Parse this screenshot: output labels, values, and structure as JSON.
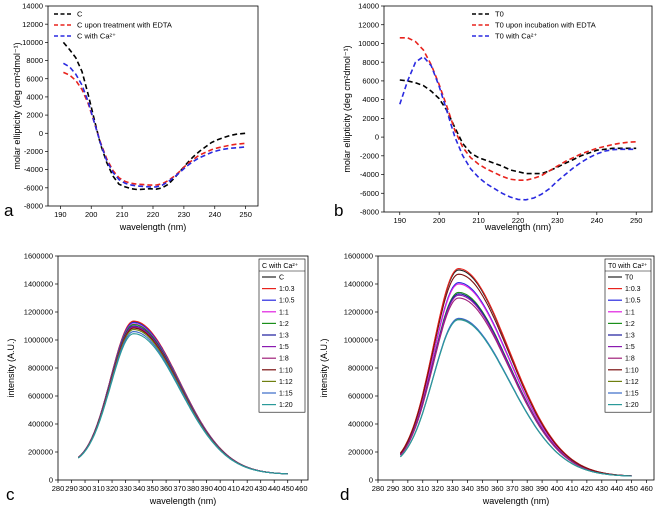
{
  "colors": {
    "black": "#000000",
    "red": "#e8231d",
    "blue": "#2a2ae0"
  },
  "chart_data": [
    {
      "id": "a",
      "type": "line",
      "panel_label": "a",
      "xlabel": "wavelength (nm)",
      "ylabel": "molar ellipticity (deg cm²dmol⁻¹)",
      "xlim": [
        186,
        254
      ],
      "ylim": [
        -8000,
        14000
      ],
      "xticks": [
        190,
        200,
        210,
        220,
        230,
        240,
        250
      ],
      "yticks": [
        -8000,
        -6000,
        -4000,
        -2000,
        0,
        2000,
        4000,
        6000,
        8000,
        10000,
        12000,
        14000
      ],
      "legend_position": "top-left",
      "line_style": "dashed",
      "series": [
        {
          "name": "C",
          "color": "#000000",
          "x": [
            191,
            193,
            195,
            197,
            199,
            201,
            203,
            205,
            207,
            209,
            211,
            213,
            215,
            217,
            219,
            221,
            223,
            225,
            227,
            229,
            231,
            233,
            235,
            237,
            239,
            241,
            243,
            245,
            247,
            250
          ],
          "y": [
            10000,
            9200,
            8300,
            6800,
            4300,
            1500,
            -1200,
            -3200,
            -4700,
            -5600,
            -5900,
            -6100,
            -6200,
            -6150,
            -6100,
            -6150,
            -6000,
            -5600,
            -4900,
            -4100,
            -3300,
            -2600,
            -2000,
            -1500,
            -1000,
            -700,
            -450,
            -250,
            -100,
            0
          ]
        },
        {
          "name": "C upon treatment with EDTA",
          "color": "#e8231d",
          "x": [
            191,
            193,
            195,
            197,
            199,
            201,
            203,
            205,
            207,
            209,
            211,
            213,
            215,
            217,
            219,
            221,
            223,
            225,
            227,
            229,
            231,
            233,
            235,
            237,
            239,
            241,
            243,
            245,
            247,
            250
          ],
          "y": [
            6700,
            6400,
            5800,
            4800,
            3300,
            1200,
            -1000,
            -2800,
            -4100,
            -4900,
            -5300,
            -5500,
            -5600,
            -5650,
            -5700,
            -5700,
            -5550,
            -5200,
            -4700,
            -4100,
            -3400,
            -2900,
            -2400,
            -2100,
            -1800,
            -1600,
            -1450,
            -1300,
            -1200,
            -1100
          ]
        },
        {
          "name": "C with Ca²⁺",
          "color": "#2a2ae0",
          "x": [
            191,
            193,
            195,
            197,
            199,
            201,
            203,
            205,
            207,
            209,
            211,
            213,
            215,
            217,
            219,
            221,
            223,
            225,
            227,
            229,
            231,
            233,
            235,
            237,
            239,
            241,
            243,
            245,
            247,
            250
          ],
          "y": [
            7700,
            7300,
            6500,
            5300,
            3500,
            1200,
            -1100,
            -3000,
            -4300,
            -5100,
            -5500,
            -5700,
            -5800,
            -5850,
            -5900,
            -5900,
            -5700,
            -5300,
            -4800,
            -4200,
            -3600,
            -3100,
            -2700,
            -2400,
            -2100,
            -1900,
            -1750,
            -1650,
            -1600,
            -1500
          ]
        }
      ]
    },
    {
      "id": "b",
      "type": "line",
      "panel_label": "b",
      "xlabel": "wavelength (nm)",
      "ylabel": "molar ellipticity (deg cm²dmol⁻¹)",
      "xlim": [
        186,
        254
      ],
      "ylim": [
        -8000,
        14000
      ],
      "xticks": [
        190,
        200,
        210,
        220,
        230,
        240,
        250
      ],
      "yticks": [
        -8000,
        -6000,
        -4000,
        -2000,
        0,
        2000,
        4000,
        6000,
        8000,
        10000,
        12000,
        14000
      ],
      "legend_position": "top-right",
      "line_style": "dashed",
      "series": [
        {
          "name": "T0",
          "color": "#000000",
          "x": [
            190,
            192,
            194,
            196,
            198,
            200,
            202,
            204,
            206,
            208,
            210,
            212,
            214,
            216,
            218,
            220,
            222,
            224,
            226,
            228,
            230,
            232,
            234,
            236,
            238,
            240,
            242,
            244,
            246,
            248,
            250
          ],
          "y": [
            6100,
            6000,
            5800,
            5500,
            4900,
            4100,
            2800,
            1000,
            -700,
            -1700,
            -2200,
            -2500,
            -2800,
            -3100,
            -3500,
            -3700,
            -3900,
            -3900,
            -3900,
            -3600,
            -3200,
            -2800,
            -2400,
            -2000,
            -1700,
            -1400,
            -1300,
            -1200,
            -1200,
            -1200,
            -1200
          ]
        },
        {
          "name": "T0 upon incubation with EDTA",
          "color": "#e8231d",
          "x": [
            190,
            192,
            194,
            196,
            198,
            200,
            202,
            204,
            206,
            208,
            210,
            212,
            214,
            216,
            218,
            220,
            222,
            224,
            226,
            228,
            230,
            232,
            234,
            236,
            238,
            240,
            242,
            244,
            246,
            248,
            250
          ],
          "y": [
            10600,
            10600,
            10200,
            9300,
            7700,
            5600,
            3200,
            700,
            -1100,
            -2200,
            -2900,
            -3400,
            -3800,
            -4200,
            -4500,
            -4600,
            -4600,
            -4400,
            -4100,
            -3600,
            -3100,
            -2600,
            -2200,
            -1800,
            -1500,
            -1200,
            -1000,
            -800,
            -650,
            -550,
            -500
          ]
        },
        {
          "name": "T0 with Ca²⁺",
          "color": "#2a2ae0",
          "x": [
            190,
            192,
            194,
            196,
            198,
            200,
            202,
            204,
            206,
            208,
            210,
            212,
            214,
            216,
            218,
            220,
            222,
            224,
            226,
            228,
            230,
            232,
            234,
            236,
            238,
            240,
            242,
            244,
            246,
            248,
            250
          ],
          "y": [
            3500,
            6000,
            8000,
            8600,
            7600,
            5400,
            2700,
            0,
            -2000,
            -3400,
            -4300,
            -5000,
            -5500,
            -6000,
            -6400,
            -6650,
            -6700,
            -6500,
            -6100,
            -5500,
            -4700,
            -4000,
            -3300,
            -2700,
            -2200,
            -1800,
            -1500,
            -1350,
            -1300,
            -1300,
            -1300
          ]
        }
      ]
    },
    {
      "id": "c",
      "type": "line",
      "panel_label": "c",
      "xlabel": "wavelength (nm)",
      "ylabel": "intensity (A.U.)",
      "xlim": [
        280,
        465
      ],
      "ylim": [
        0,
        1600000
      ],
      "xticks": [
        280,
        290,
        300,
        310,
        320,
        330,
        340,
        350,
        360,
        370,
        380,
        390,
        400,
        410,
        420,
        430,
        440,
        450,
        460
      ],
      "yticks": [
        0,
        200000,
        400000,
        600000,
        800000,
        1000000,
        1200000,
        1400000,
        1600000
      ],
      "legend_title": "C with Ca²⁺",
      "legend_position": "top-right",
      "line_style": "solid",
      "peak_wavelength": 336,
      "start_wavelength": 295,
      "end_wavelength": 450,
      "start_value": 105000,
      "end_value": 40000,
      "series": [
        {
          "name": "C",
          "color": "#222222",
          "peak": 1130000
        },
        {
          "name": "1:0.3",
          "color": "#e8231d",
          "peak": 1135000
        },
        {
          "name": "1:0.5",
          "color": "#2a2ae0",
          "peak": 1125000
        },
        {
          "name": "1:1",
          "color": "#e020e0",
          "peak": 1115000
        },
        {
          "name": "1:2",
          "color": "#1a8f1a",
          "peak": 1110000
        },
        {
          "name": "1:3",
          "color": "#1a1a9c",
          "peak": 1100000
        },
        {
          "name": "1:5",
          "color": "#8a1ab0",
          "peak": 1095000
        },
        {
          "name": "1:8",
          "color": "#a0207a",
          "peak": 1090000
        },
        {
          "name": "1:10",
          "color": "#7a0f0f",
          "peak": 1085000
        },
        {
          "name": "1:12",
          "color": "#6f7f10",
          "peak": 1075000
        },
        {
          "name": "1:15",
          "color": "#3a6cc8",
          "peak": 1060000
        },
        {
          "name": "1:20",
          "color": "#2a9a9a",
          "peak": 1045000
        }
      ]
    },
    {
      "id": "d",
      "type": "line",
      "panel_label": "d",
      "xlabel": "wavelength (nm)",
      "ylabel": "intensity (A.U.)",
      "xlim": [
        280,
        465
      ],
      "ylim": [
        0,
        1600000
      ],
      "xticks": [
        280,
        290,
        300,
        310,
        320,
        330,
        340,
        350,
        360,
        370,
        380,
        390,
        400,
        410,
        420,
        430,
        440,
        450,
        460
      ],
      "yticks": [
        0,
        200000,
        400000,
        600000,
        800000,
        1000000,
        1200000,
        1400000,
        1600000
      ],
      "legend_title": "T0 with Ca²⁺",
      "legend_position": "top-right",
      "line_style": "solid",
      "peak_wavelength": 334,
      "start_wavelength": 295,
      "end_wavelength": 450,
      "start_value": 90000,
      "end_value": 25000,
      "series": [
        {
          "name": "T0",
          "color": "#222222",
          "peak": 1500000
        },
        {
          "name": "1:0.3",
          "color": "#e8231d",
          "peak": 1510000
        },
        {
          "name": "1:0.5",
          "color": "#2a2ae0",
          "peak": 1410000
        },
        {
          "name": "1:1",
          "color": "#e020e0",
          "peak": 1400000
        },
        {
          "name": "1:2",
          "color": "#1a8f1a",
          "peak": 1340000
        },
        {
          "name": "1:3",
          "color": "#1a1a9c",
          "peak": 1330000
        },
        {
          "name": "1:5",
          "color": "#8a1ab0",
          "peak": 1320000
        },
        {
          "name": "1:8",
          "color": "#a0207a",
          "peak": 1300000
        },
        {
          "name": "1:10",
          "color": "#7a0f0f",
          "peak": 1470000
        },
        {
          "name": "1:12",
          "color": "#6f7f10",
          "peak": 1150000
        },
        {
          "name": "1:15",
          "color": "#3a6cc8",
          "peak": 1155000
        },
        {
          "name": "1:20",
          "color": "#2a9a9a",
          "peak": 1145000
        }
      ]
    }
  ]
}
